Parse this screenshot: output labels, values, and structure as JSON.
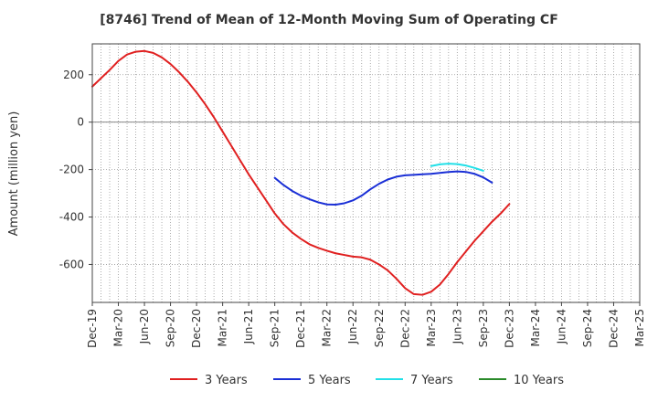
{
  "chart_data": {
    "type": "line",
    "title": "[8746]  Trend of Mean of 12-Month Moving Sum of Operating CF",
    "xlabel": "",
    "ylabel": "Amount (million yen)",
    "ylim": [
      -760,
      330
    ],
    "yticks": [
      200,
      0,
      -200,
      -400,
      -600
    ],
    "grid": true,
    "legend_position": "bottom",
    "x_start": "Dec-19",
    "x_end": "Mar-25",
    "xtick_labels": [
      "Dec-19",
      "Mar-20",
      "Jun-20",
      "Sep-20",
      "Dec-20",
      "Mar-21",
      "Jun-21",
      "Sep-21",
      "Dec-21",
      "Mar-22",
      "Jun-22",
      "Sep-22",
      "Dec-22",
      "Mar-23",
      "Jun-23",
      "Sep-23",
      "Dec-23",
      "Mar-24",
      "Jun-24",
      "Sep-24",
      "Dec-24",
      "Mar-25"
    ],
    "series": [
      {
        "name": "3 Years",
        "color": "#e02020",
        "start_index": 0,
        "values": [
          150,
          185,
          220,
          258,
          285,
          297,
          300,
          292,
          273,
          245,
          210,
          170,
          125,
          75,
          20,
          -40,
          -100,
          -160,
          -220,
          -275,
          -330,
          -385,
          -430,
          -465,
          -492,
          -515,
          -530,
          -542,
          -553,
          -560,
          -567,
          -570,
          -580,
          -600,
          -625,
          -660,
          -700,
          -725,
          -728,
          -715,
          -685,
          -640,
          -590,
          -545,
          -500,
          -460,
          -420,
          -385,
          -345
        ]
      },
      {
        "name": "5 Years",
        "color": "#1a2fd6",
        "start_index": 21,
        "values": [
          -235,
          -265,
          -290,
          -310,
          -325,
          -338,
          -347,
          -348,
          -342,
          -330,
          -310,
          -283,
          -260,
          -242,
          -230,
          -224,
          -222,
          -220,
          -218,
          -214,
          -210,
          -208,
          -210,
          -218,
          -233,
          -255
        ]
      },
      {
        "name": "7 Years",
        "color": "#22e0e8",
        "start_index": 39,
        "values": [
          -185,
          -178,
          -175,
          -177,
          -183,
          -193,
          -205
        ]
      },
      {
        "name": "10 Years",
        "color": "#2a8a2a",
        "start_index": 0,
        "values": []
      }
    ]
  }
}
